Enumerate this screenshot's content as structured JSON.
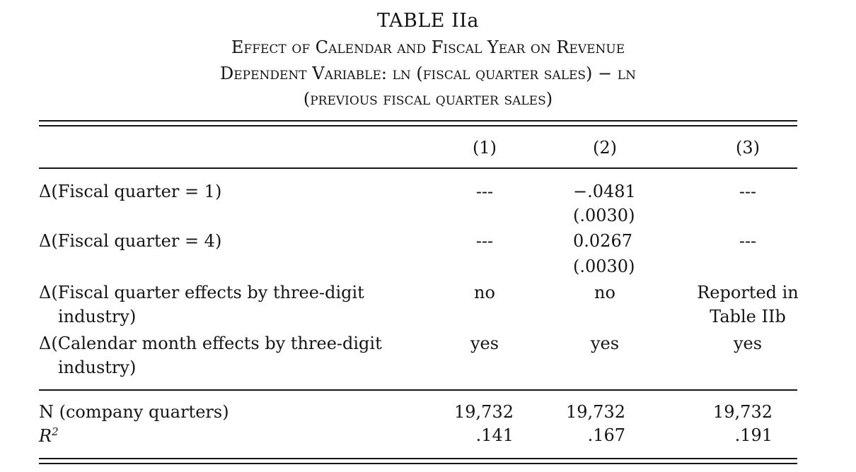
{
  "table": {
    "number": "TABLE IIa",
    "title": "Effect of Calendar and Fiscal Year on Revenue",
    "dependent_line1": "Dependent Variable: ln (fiscal quarter sales) − ln",
    "dependent_line2": "(previous fiscal quarter sales)",
    "columns": [
      "(1)",
      "(2)",
      "(3)"
    ],
    "rows": {
      "fq1": {
        "label": "Δ(Fiscal quarter = 1)",
        "c1": "---",
        "c2": "−.0481",
        "c2_se": "(.0030)",
        "c3": "---"
      },
      "fq4": {
        "label": "Δ(Fiscal quarter = 4)",
        "c1": "---",
        "c2": "0.0267",
        "c2_se": "(.0030)",
        "c3": "---"
      },
      "fq_effects": {
        "label_line1": "Δ(Fiscal quarter effects by three-digit",
        "label_line2": "industry)",
        "c1": "no",
        "c2": "no",
        "c3_line1": "Reported in",
        "c3_line2": "Table IIb"
      },
      "cm_effects": {
        "label_line1": "Δ(Calendar month effects by three-digit",
        "label_line2": "industry)",
        "c1": "yes",
        "c2": "yes",
        "c3": "yes"
      },
      "n": {
        "label": "N (company quarters)",
        "c1": "19,732",
        "c2": "19,732",
        "c3": "19,732"
      },
      "r2": {
        "label": "R",
        "label_sup": "2",
        "c1": ".141",
        "c2": ".167",
        "c3": ".191"
      }
    }
  }
}
